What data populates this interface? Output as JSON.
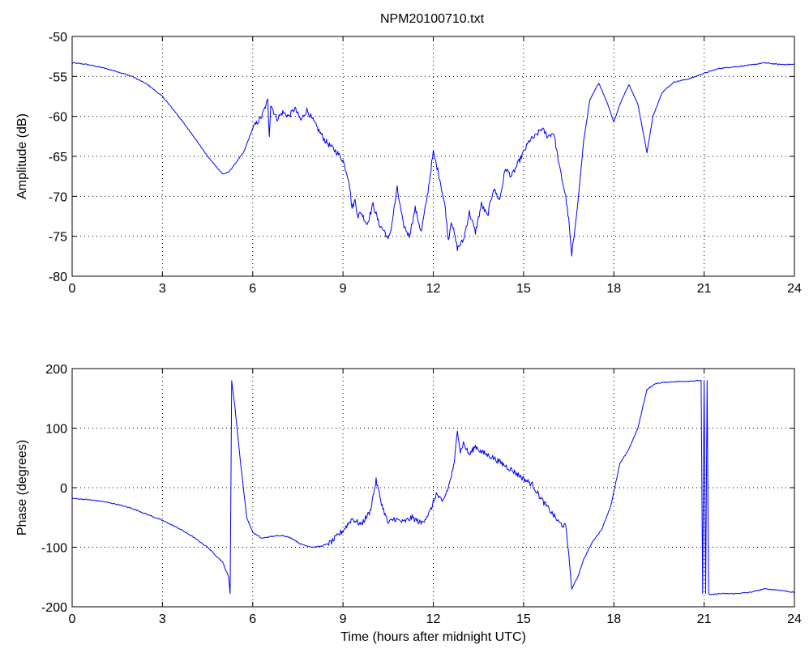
{
  "title": "NPM20100710.txt",
  "colors": {
    "line": "#0000ff",
    "axes": "#000000",
    "grid": "#000000",
    "background": "#ffffff"
  },
  "chart_data": [
    {
      "type": "line",
      "title": "NPM20100710.txt",
      "xlabel": "",
      "ylabel": "Amplitude (dB)",
      "xlim": [
        0,
        24
      ],
      "ylim": [
        -80,
        -50
      ],
      "xticks": [
        0,
        3,
        6,
        9,
        12,
        15,
        18,
        21,
        24
      ],
      "yticks": [
        -80,
        -75,
        -70,
        -65,
        -60,
        -55,
        -50
      ],
      "grid": true,
      "series": [
        {
          "x": [
            0,
            0.5,
            1,
            1.5,
            2,
            2.5,
            3,
            3.5,
            4,
            4.5,
            5,
            5.2,
            5.4,
            5.7,
            6,
            6.3,
            6.5,
            6.55,
            6.6,
            6.8,
            7.0,
            7.2,
            7.4,
            7.6,
            7.8,
            8.0,
            8.2,
            8.4,
            8.6,
            8.8,
            9.0,
            9.2,
            9.3,
            9.4,
            9.5,
            9.6,
            9.8,
            10.0,
            10.2,
            10.4,
            10.5,
            10.6,
            10.8,
            11.0,
            11.2,
            11.4,
            11.6,
            11.8,
            12.0,
            12.2,
            12.4,
            12.5,
            12.6,
            12.8,
            13.0,
            13.2,
            13.4,
            13.6,
            13.8,
            14.0,
            14.2,
            14.4,
            14.6,
            14.8,
            15.0,
            15.2,
            15.4,
            15.6,
            15.8,
            16.0,
            16.2,
            16.4,
            16.5,
            16.6,
            16.8,
            17.0,
            17.2,
            17.5,
            17.8,
            18.0,
            18.2,
            18.5,
            18.8,
            19.0,
            19.1,
            19.3,
            19.6,
            20.0,
            20.5,
            21.0,
            21.5,
            22.0,
            22.5,
            23.0,
            23.5,
            24.0
          ],
          "y": [
            -53.3,
            -53.5,
            -53.9,
            -54.4,
            -55.0,
            -56.0,
            -57.5,
            -59.8,
            -62.3,
            -65.0,
            -67.2,
            -67.0,
            -66.0,
            -64.5,
            -61.5,
            -60.0,
            -58.0,
            -62.3,
            -58.5,
            -60.3,
            -59.5,
            -60.0,
            -59.0,
            -60.5,
            -59.2,
            -60.5,
            -61.8,
            -63.0,
            -63.8,
            -64.5,
            -65.5,
            -68.0,
            -71.5,
            -70.5,
            -72.5,
            -72.0,
            -73.5,
            -71.0,
            -73.5,
            -74.5,
            -75.5,
            -74.0,
            -69.0,
            -73.5,
            -75.0,
            -71.5,
            -74.5,
            -70.0,
            -64.5,
            -67.5,
            -71.5,
            -75.5,
            -73.0,
            -76.5,
            -75.5,
            -72.0,
            -74.5,
            -71.0,
            -72.5,
            -69.0,
            -70.5,
            -66.5,
            -67.5,
            -66.0,
            -64.5,
            -63.0,
            -62.5,
            -61.5,
            -62.5,
            -62.0,
            -66.5,
            -70.0,
            -73.0,
            -77.5,
            -71.0,
            -63.0,
            -58.0,
            -55.8,
            -58.5,
            -60.7,
            -58.5,
            -56.0,
            -58.5,
            -62.5,
            -64.5,
            -60.0,
            -57.0,
            -55.7,
            -55.3,
            -54.6,
            -54.0,
            -53.8,
            -53.6,
            -53.3,
            -53.5,
            -53.5
          ]
        }
      ]
    },
    {
      "type": "line",
      "title": "",
      "xlabel": "Time (hours after midnight UTC)",
      "ylabel": "Phase (degrees)",
      "xlim": [
        0,
        24
      ],
      "ylim": [
        -200,
        200
      ],
      "xticks": [
        0,
        3,
        6,
        9,
        12,
        15,
        18,
        21,
        24
      ],
      "yticks": [
        -200,
        -100,
        0,
        100,
        200
      ],
      "grid": true,
      "series": [
        {
          "x": [
            0,
            0.5,
            1,
            1.5,
            2,
            2.5,
            3,
            3.5,
            4,
            4.5,
            5,
            5.2,
            5.25,
            5.3,
            5.4,
            5.6,
            5.8,
            6.0,
            6.3,
            6.6,
            7.0,
            7.3,
            7.6,
            8.0,
            8.3,
            8.6,
            9.0,
            9.3,
            9.6,
            9.9,
            10.1,
            10.3,
            10.5,
            10.7,
            11.0,
            11.3,
            11.6,
            11.9,
            12.1,
            12.3,
            12.5,
            12.7,
            12.8,
            12.9,
            13.0,
            13.2,
            13.4,
            13.6,
            13.8,
            14.0,
            14.3,
            14.6,
            15.0,
            15.3,
            15.6,
            15.9,
            16.2,
            16.4,
            16.5,
            16.6,
            16.8,
            17.0,
            17.3,
            17.6,
            17.9,
            18.2,
            18.5,
            18.8,
            19.1,
            19.4,
            19.7,
            20.0,
            20.5,
            20.9,
            20.95,
            21.0,
            21.05,
            21.1,
            21.15,
            21.2,
            21.5,
            22.0,
            22.5,
            23.0,
            23.5,
            24.0
          ],
          "y": [
            -18,
            -20,
            -23,
            -28,
            -35,
            -45,
            -55,
            -67,
            -82,
            -100,
            -125,
            -150,
            -178,
            180,
            140,
            40,
            -50,
            -75,
            -85,
            -82,
            -80,
            -85,
            -95,
            -100,
            -98,
            -92,
            -72,
            -52,
            -62,
            -40,
            12,
            -30,
            -60,
            -52,
            -58,
            -50,
            -60,
            -40,
            -10,
            -25,
            0,
            40,
            100,
            60,
            75,
            55,
            70,
            60,
            55,
            50,
            40,
            30,
            15,
            5,
            -20,
            -40,
            -60,
            -65,
            -110,
            -170,
            -150,
            -120,
            -90,
            -70,
            -30,
            40,
            65,
            100,
            165,
            175,
            177,
            178,
            179,
            180,
            -178,
            180,
            -178,
            180,
            -178,
            -180,
            -178,
            -178,
            -176,
            -170,
            -172,
            -176
          ]
        }
      ]
    }
  ]
}
